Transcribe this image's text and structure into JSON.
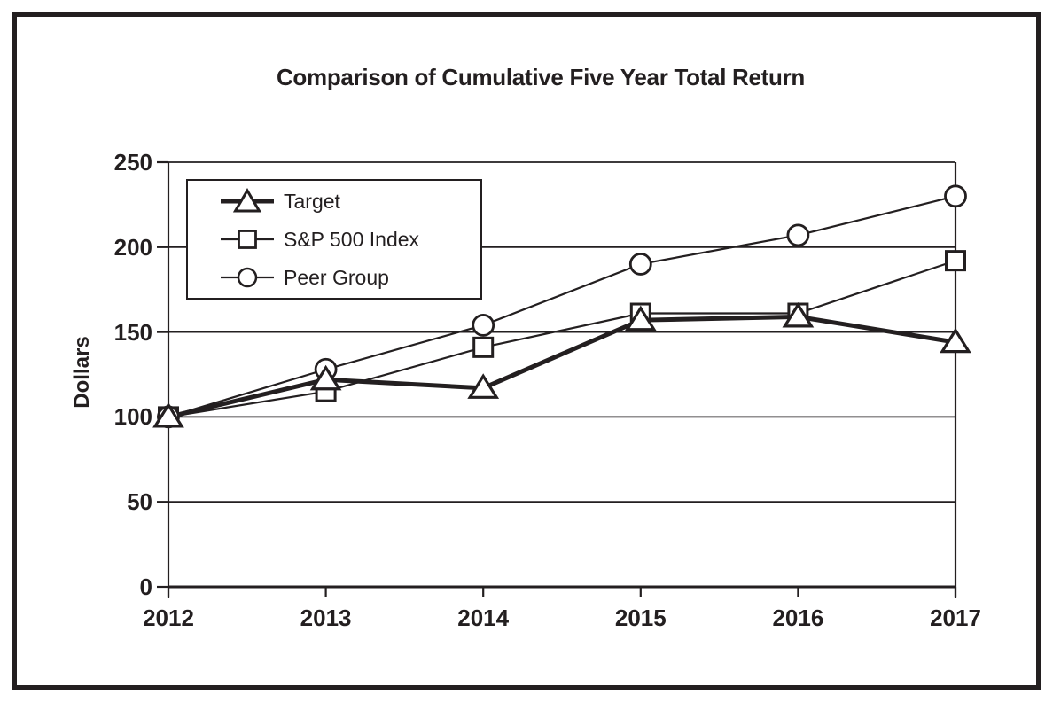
{
  "page": {
    "background": "#ffffff",
    "ink_color": "#231f20"
  },
  "chart_data": {
    "type": "line",
    "title": "Comparison of Cumulative Five Year Total Return",
    "ylabel": "Dollars",
    "xlabel": "",
    "categories": [
      "2012",
      "2013",
      "2014",
      "2015",
      "2016",
      "2017"
    ],
    "yticks": [
      0,
      50,
      100,
      150,
      200,
      250
    ],
    "ylim": [
      0,
      250
    ],
    "grid": "horizontal",
    "legend_position": "top-left-inside",
    "series": [
      {
        "name": "Target",
        "marker": "triangle",
        "line_weight": "thick",
        "values": [
          100,
          122,
          117,
          157,
          159,
          144
        ]
      },
      {
        "name": "S&P 500 Index",
        "marker": "square",
        "line_weight": "thin",
        "values": [
          100,
          115,
          141,
          161,
          161,
          192
        ]
      },
      {
        "name": "Peer Group",
        "marker": "circle",
        "line_weight": "thin",
        "values": [
          100,
          128,
          154,
          190,
          207,
          230
        ]
      }
    ]
  }
}
